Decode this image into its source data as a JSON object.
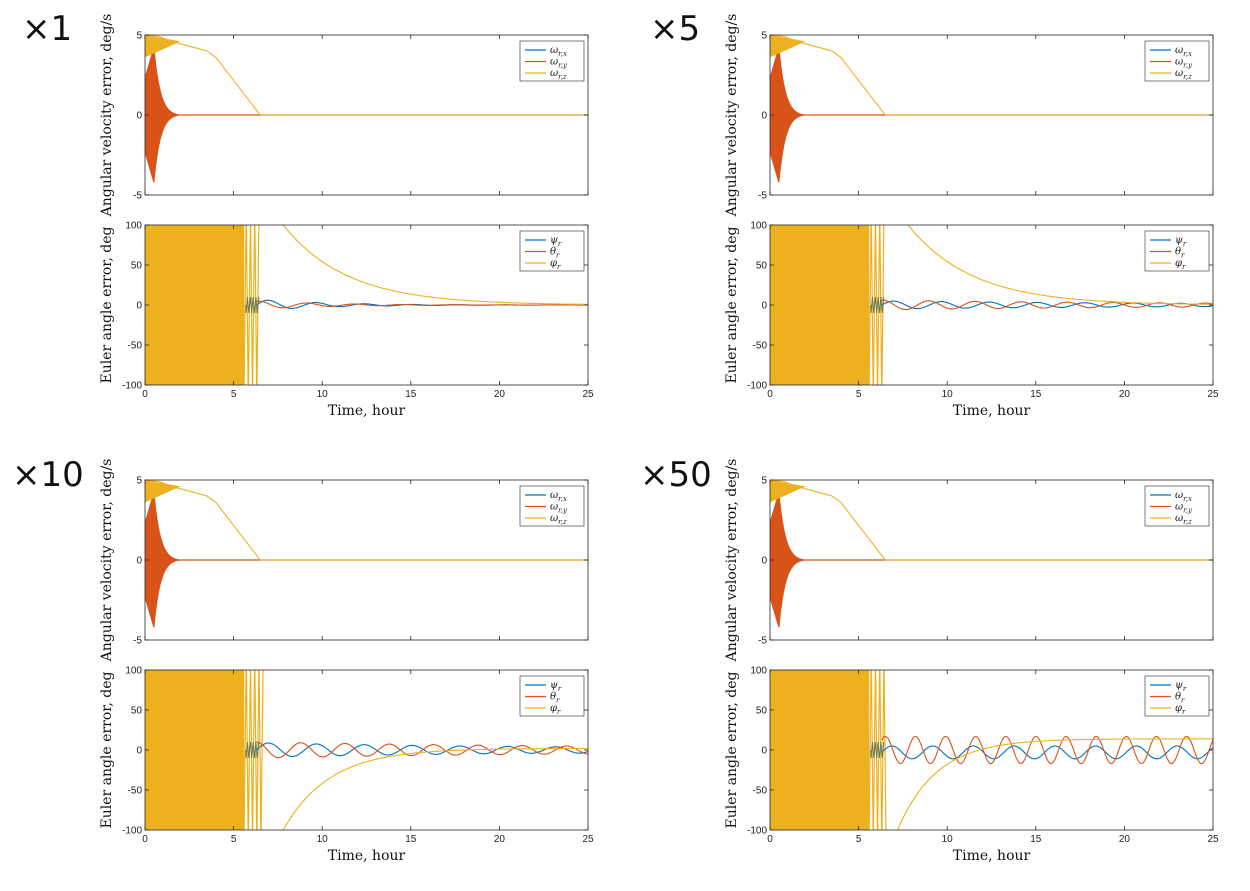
{
  "figure": {
    "panel_labels": [
      "×1",
      "×5",
      "×10",
      "×50"
    ]
  },
  "colors": {
    "blue": "#0072bd",
    "orange": "#d95319",
    "yellow": "#edb120",
    "axis": "#262626"
  },
  "chart_data": [
    {
      "id": "x1-omega",
      "type": "line",
      "xlabel": "",
      "ylabel": "Angular velocity error, deg/s",
      "xlim": [
        0,
        25
      ],
      "ylim": [
        -5,
        5
      ],
      "yticks": [
        "-5",
        "0",
        "5"
      ],
      "xticks": [],
      "legend": {
        "placement": "top-right",
        "entries": [
          "ω_{r,x}",
          "ω_{r,y}",
          "ω_{r,z}"
        ]
      },
      "series": [
        {
          "name": "ω_{r,x}",
          "color": "blue",
          "points": [
            [
              0,
              0
            ],
            [
              25,
              0
            ]
          ]
        },
        {
          "name": "ω_{r,y}",
          "color": "orange",
          "oscillation": {
            "t0": 0,
            "t1": 2.0,
            "peak_t": 0.5,
            "peak_amp": 4.2,
            "zero_after": 2.0
          }
        },
        {
          "name": "ω_{r,z}",
          "color": "yellow",
          "points": [
            [
              0,
              5
            ],
            [
              0.8,
              4.9
            ],
            [
              1.5,
              4.6
            ],
            [
              2.5,
              4.3
            ],
            [
              3.5,
              4.0
            ],
            [
              4.0,
              3.6
            ],
            [
              6.5,
              0
            ],
            [
              25,
              0
            ]
          ],
          "band": {
            "t0": 0,
            "t1": 2.0,
            "upper": 5,
            "lower_start": 3.6,
            "lower_end": 4.6
          }
        }
      ]
    },
    {
      "id": "x1-euler",
      "type": "line",
      "xlabel": "Time, hour",
      "ylabel": "Euler angle error, deg",
      "xlim": [
        0,
        25
      ],
      "ylim": [
        -100,
        100
      ],
      "yticks": [
        "-100",
        "-50",
        "0",
        "50",
        "100"
      ],
      "xticks": [
        "0",
        "5",
        "10",
        "15",
        "20",
        "25"
      ],
      "legend": {
        "placement": "top-right",
        "entries": [
          "ψ_r",
          "θ_r",
          "φ_r"
        ]
      },
      "saturated_fill": {
        "t0": 0,
        "t1": 5.6,
        "wraps_until": 6.4
      },
      "series": [
        {
          "name": "ψ_r",
          "color": "blue",
          "oscillation": {
            "t0": 6.3,
            "t1": 25,
            "amp": 7,
            "decay": 0.25,
            "period": 2.7,
            "phase": 0
          }
        },
        {
          "name": "θ_r",
          "color": "orange",
          "oscillation": {
            "t0": 6.3,
            "t1": 25,
            "amp": 5,
            "decay": 0.25,
            "period": 2.7,
            "phase": 1.2
          }
        },
        {
          "name": "φ_r",
          "color": "yellow",
          "decay_curve": {
            "t0": 7.8,
            "v0": 100,
            "t_end": 25,
            "tau": 3.6,
            "offset": 0
          }
        }
      ]
    },
    {
      "id": "x5-omega",
      "type": "line",
      "xlabel": "",
      "ylabel": "Angular velocity error, deg/s",
      "xlim": [
        0,
        25
      ],
      "ylim": [
        -5,
        5
      ],
      "yticks": [
        "-5",
        "0",
        "5"
      ],
      "xticks": [],
      "legend": {
        "placement": "top-right",
        "entries": [
          "ω_{r,x}",
          "ω_{r,y}",
          "ω_{r,z}"
        ]
      },
      "series": [
        {
          "name": "ω_{r,x}",
          "color": "blue",
          "points": [
            [
              0,
              0
            ],
            [
              25,
              0
            ]
          ]
        },
        {
          "name": "ω_{r,y}",
          "color": "orange",
          "oscillation": {
            "t0": 0,
            "t1": 2.0,
            "peak_t": 0.5,
            "peak_amp": 4.2,
            "zero_after": 2.0
          }
        },
        {
          "name": "ω_{r,z}",
          "color": "yellow",
          "points": [
            [
              0,
              5
            ],
            [
              0.8,
              4.9
            ],
            [
              1.5,
              4.6
            ],
            [
              2.5,
              4.3
            ],
            [
              3.5,
              4.0
            ],
            [
              4.0,
              3.6
            ],
            [
              6.5,
              0
            ],
            [
              25,
              0
            ]
          ],
          "band": {
            "t0": 0,
            "t1": 2.0,
            "upper": 5,
            "lower_start": 3.6,
            "lower_end": 4.6
          }
        }
      ]
    },
    {
      "id": "x5-euler",
      "type": "line",
      "xlabel": "Time, hour",
      "ylabel": "Euler angle error, deg",
      "xlim": [
        0,
        25
      ],
      "ylim": [
        -100,
        100
      ],
      "yticks": [
        "-100",
        "-50",
        "0",
        "50",
        "100"
      ],
      "xticks": [
        "0",
        "5",
        "10",
        "15",
        "20",
        "25"
      ],
      "legend": {
        "placement": "top-right",
        "entries": [
          "ψ_r",
          "θ_r",
          "φ_r"
        ]
      },
      "saturated_fill": {
        "t0": 0,
        "t1": 5.6,
        "wraps_until": 6.4
      },
      "series": [
        {
          "name": "ψ_r",
          "color": "blue",
          "oscillation": {
            "t0": 6.3,
            "t1": 25,
            "amp": 5,
            "decay": 0.05,
            "period": 2.7,
            "phase": 0,
            "floor": 2
          }
        },
        {
          "name": "θ_r",
          "color": "orange",
          "oscillation": {
            "t0": 6.3,
            "t1": 25,
            "amp": 6,
            "decay": 0.05,
            "period": 2.6,
            "phase": 1.4,
            "floor": 2
          }
        },
        {
          "name": "φ_r",
          "color": "yellow",
          "decay_curve": {
            "t0": 7.8,
            "v0": 100,
            "t_end": 25,
            "tau": 3.6,
            "offset": 0
          }
        }
      ]
    },
    {
      "id": "x10-omega",
      "type": "line",
      "xlabel": "",
      "ylabel": "Angular velocity error, deg/s",
      "xlim": [
        0,
        25
      ],
      "ylim": [
        -5,
        5
      ],
      "yticks": [
        "-5",
        "0",
        "5"
      ],
      "xticks": [],
      "legend": {
        "placement": "top-right",
        "entries": [
          "ω_{r,x}",
          "ω_{r,y}",
          "ω_{r,z}"
        ]
      },
      "series": [
        {
          "name": "ω_{r,x}",
          "color": "blue",
          "points": [
            [
              0,
              0
            ],
            [
              25,
              0
            ]
          ]
        },
        {
          "name": "ω_{r,y}",
          "color": "orange",
          "oscillation": {
            "t0": 0,
            "t1": 2.0,
            "peak_t": 0.5,
            "peak_amp": 4.2,
            "zero_after": 2.0
          }
        },
        {
          "name": "ω_{r,z}",
          "color": "yellow",
          "points": [
            [
              0,
              5
            ],
            [
              0.8,
              4.9
            ],
            [
              1.5,
              4.6
            ],
            [
              2.5,
              4.3
            ],
            [
              3.5,
              4.0
            ],
            [
              4.0,
              3.6
            ],
            [
              6.5,
              0
            ],
            [
              25,
              0
            ]
          ],
          "band": {
            "t0": 0,
            "t1": 2.0,
            "upper": 5,
            "lower_start": 3.6,
            "lower_end": 4.6
          }
        }
      ]
    },
    {
      "id": "x10-euler",
      "type": "line",
      "xlabel": "Time, hour",
      "ylabel": "Euler angle error, deg",
      "xlim": [
        0,
        25
      ],
      "ylim": [
        -100,
        100
      ],
      "yticks": [
        "-100",
        "-50",
        "0",
        "50",
        "100"
      ],
      "xticks": [
        "0",
        "5",
        "10",
        "15",
        "20",
        "25"
      ],
      "legend": {
        "placement": "top-right",
        "entries": [
          "ψ_r",
          "θ_r",
          "φ_r"
        ]
      },
      "saturated_fill": {
        "t0": 0,
        "t1": 5.6,
        "wraps_until": 6.6
      },
      "series": [
        {
          "name": "ψ_r",
          "color": "blue",
          "oscillation": {
            "t0": 6.3,
            "t1": 25,
            "amp": 9,
            "decay": 0.05,
            "period": 2.7,
            "phase": 0,
            "floor": 4
          }
        },
        {
          "name": "θ_r",
          "color": "orange",
          "oscillation": {
            "t0": 6.3,
            "t1": 25,
            "amp": 10,
            "decay": 0.04,
            "period": 2.5,
            "phase": 1.6,
            "floor": 5
          }
        },
        {
          "name": "φ_r",
          "color": "yellow",
          "rise_curve": {
            "t0": 7.8,
            "v0": -100,
            "t_end": 25,
            "tau": 2.6,
            "asymptote": 2
          }
        }
      ]
    },
    {
      "id": "x50-omega",
      "type": "line",
      "xlabel": "",
      "ylabel": "Angular velocity error, deg/s",
      "xlim": [
        0,
        25
      ],
      "ylim": [
        -5,
        5
      ],
      "yticks": [
        "-5",
        "0",
        "5"
      ],
      "xticks": [],
      "legend": {
        "placement": "top-right",
        "entries": [
          "ω_{r,x}",
          "ω_{r,y}",
          "ω_{r,z}"
        ]
      },
      "series": [
        {
          "name": "ω_{r,x}",
          "color": "blue",
          "points": [
            [
              0,
              0
            ],
            [
              25,
              0
            ]
          ]
        },
        {
          "name": "ω_{r,y}",
          "color": "orange",
          "oscillation": {
            "t0": 0,
            "t1": 2.0,
            "peak_t": 0.5,
            "peak_amp": 4.2,
            "zero_after": 2.0
          }
        },
        {
          "name": "ω_{r,z}",
          "color": "yellow",
          "points": [
            [
              0,
              5
            ],
            [
              0.8,
              4.9
            ],
            [
              1.5,
              4.6
            ],
            [
              2.5,
              4.3
            ],
            [
              3.5,
              4.0
            ],
            [
              4.0,
              3.6
            ],
            [
              6.5,
              0
            ],
            [
              25,
              0
            ]
          ],
          "band": {
            "t0": 0,
            "t1": 2.0,
            "upper": 5,
            "lower_start": 3.6,
            "lower_end": 4.6
          }
        }
      ]
    },
    {
      "id": "x50-euler",
      "type": "line",
      "xlabel": "Time, hour",
      "ylabel": "Euler angle error, deg",
      "xlim": [
        0,
        25
      ],
      "ylim": [
        -100,
        100
      ],
      "yticks": [
        "-100",
        "-50",
        "0",
        "50",
        "100"
      ],
      "xticks": [
        "0",
        "5",
        "10",
        "15",
        "20",
        "25"
      ],
      "legend": {
        "placement": "top-right",
        "entries": [
          "ψ_r",
          "θ_r",
          "φ_r"
        ]
      },
      "saturated_fill": {
        "t0": 0,
        "t1": 5.6,
        "wraps_until": 6.5
      },
      "series": [
        {
          "name": "ψ_r",
          "color": "blue",
          "oscillation": {
            "t0": 6.3,
            "t1": 25,
            "amp": 8,
            "decay": 0.0,
            "period": 2.3,
            "phase": 0,
            "offset": -3,
            "floor": 0
          }
        },
        {
          "name": "θ_r",
          "color": "orange",
          "oscillation": {
            "t0": 6.3,
            "t1": 25,
            "amp": 17,
            "decay": 0.0,
            "period": 1.7,
            "phase": 0.8,
            "floor": 0
          }
        },
        {
          "name": "φ_r",
          "color": "yellow",
          "rise_curve": {
            "t0": 7.2,
            "v0": -100,
            "t_end": 25,
            "tau": 2.2,
            "asymptote": 14
          }
        }
      ]
    }
  ]
}
